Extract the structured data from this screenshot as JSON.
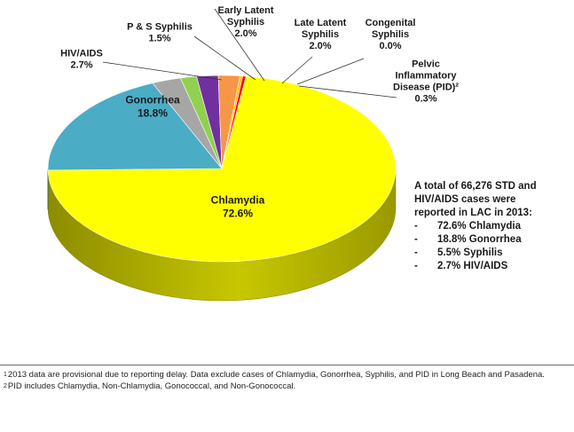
{
  "chart_data": {
    "type": "pie",
    "title": "",
    "slices": [
      {
        "name": "Chlamydia",
        "label_lines": [
          "Chlamydia"
        ],
        "percent_text": "72.6%",
        "value": 72.6,
        "color": "#ffff00"
      },
      {
        "name": "Gonorrhea",
        "label_lines": [
          "Gonorrhea"
        ],
        "percent_text": "18.8%",
        "value": 18.8,
        "color": "#4bacc6"
      },
      {
        "name": "HIV/AIDS",
        "label_lines": [
          "HIV/AIDS"
        ],
        "percent_text": "2.7%",
        "value": 2.7,
        "color": "#a6a6a6"
      },
      {
        "name": "P & S Syphilis",
        "label_lines": [
          "P & S Syphilis"
        ],
        "percent_text": "1.5%",
        "value": 1.5,
        "color": "#92d050"
      },
      {
        "name": "Early Latent Syphilis",
        "label_lines": [
          "Early Latent",
          "Syphilis"
        ],
        "percent_text": "2.0%",
        "value": 2.0,
        "color": "#7030a0"
      },
      {
        "name": "Late Latent Syphilis",
        "label_lines": [
          "Late Latent",
          "Syphilis"
        ],
        "percent_text": "2.0%",
        "value": 2.0,
        "color": "#f79646"
      },
      {
        "name": "Congenital Syphilis",
        "label_lines": [
          "Congenital",
          "Syphilis"
        ],
        "percent_text": "0.0%",
        "value": 0.0,
        "color": "#ffc000"
      },
      {
        "name": "Pelvic Inflammatory Disease (PID)",
        "label_lines": [
          "Pelvic",
          "Inflammatory",
          "Disease (PID)²"
        ],
        "percent_text": "0.3%",
        "value": 0.3,
        "color": "#ff0000"
      }
    ]
  },
  "summary": {
    "intro_lines": [
      "A total of 66,276 STD and",
      "HIV/AIDS cases were",
      "reported in LAC in 2013:"
    ],
    "items": [
      "72.6% Chlamydia",
      "18.8% Gonorrhea",
      "5.5% Syphilis",
      "2.7% HIV/AIDS"
    ],
    "dash": "-"
  },
  "footnotes": [
    {
      "mark": "1",
      "text": "2013 data are provisional due to reporting delay. Data exclude cases of Chlamydia, Gonorrhea, Syphilis, and PID in Long Beach and Pasadena."
    },
    {
      "mark": "2",
      "text": "PID includes Chlamydia, Non-Chlamydia, Gonococcal, and Non-Gonococcal."
    }
  ]
}
